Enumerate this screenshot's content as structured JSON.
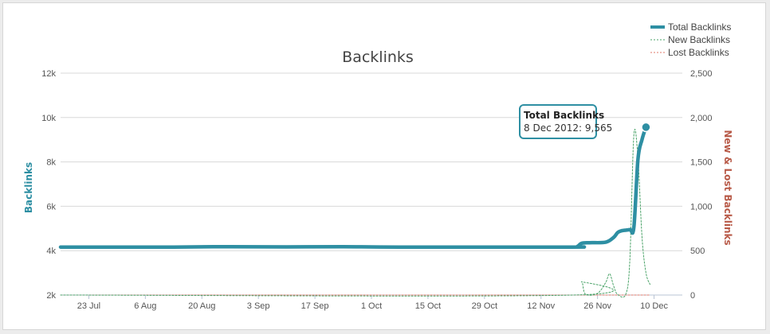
{
  "chart_data": {
    "type": "line",
    "title": "Backlinks",
    "ylabel": "Backlinks",
    "y2label": "New & Lost Backlinks",
    "ylim": [
      2000,
      12000
    ],
    "y2lim": [
      0,
      2500
    ],
    "y_ticks": [
      2000,
      4000,
      6000,
      8000,
      10000,
      12000
    ],
    "y_tick_labels": [
      "2k",
      "4k",
      "6k",
      "8k",
      "10k",
      "12k"
    ],
    "y2_ticks": [
      0,
      500,
      1000,
      1500,
      2000,
      2500
    ],
    "y2_tick_labels": [
      "0",
      "500",
      "1,000",
      "1,500",
      "2,000",
      "2,500"
    ],
    "x_start": "2012-07-16",
    "x_end": "2012-12-17",
    "x_ticks": [
      "2012-07-23",
      "2012-08-06",
      "2012-08-20",
      "2012-09-03",
      "2012-09-17",
      "2012-10-01",
      "2012-10-15",
      "2012-10-29",
      "2012-11-12",
      "2012-11-26",
      "2012-12-10"
    ],
    "x_tick_labels": [
      "23 Jul",
      "6 Aug",
      "20 Aug",
      "3 Sep",
      "17 Sep",
      "1 Oct",
      "15 Oct",
      "29 Oct",
      "12 Nov",
      "26 Nov",
      "10 Dec"
    ],
    "grid": true,
    "legend_position": "top-right",
    "series": [
      {
        "name": "Total Backlinks",
        "axis": "left",
        "color": "#2e8fa3",
        "style": "solid",
        "points": [
          [
            "2012-07-16",
            4160
          ],
          [
            "2012-08-13",
            4160
          ],
          [
            "2012-08-27",
            4180
          ],
          [
            "2012-09-10",
            4170
          ],
          [
            "2012-09-24",
            4180
          ],
          [
            "2012-10-08",
            4160
          ],
          [
            "2012-11-19",
            4160
          ],
          [
            "2012-11-21",
            4190
          ],
          [
            "2012-11-22",
            4330
          ],
          [
            "2012-11-24",
            4360
          ],
          [
            "2012-11-28",
            4380
          ],
          [
            "2012-11-30",
            4600
          ],
          [
            "2012-12-01",
            4820
          ],
          [
            "2012-12-02",
            4900
          ],
          [
            "2012-12-04",
            4950
          ],
          [
            "2012-12-05",
            5050
          ],
          [
            "2012-12-06",
            8100
          ],
          [
            "2012-12-07",
            9000
          ],
          [
            "2012-12-08",
            9565
          ]
        ]
      },
      {
        "name": "New Backlinks",
        "axis": "right",
        "color": "#4aa368",
        "style": "dotted",
        "points": [
          [
            "2012-07-16",
            0
          ],
          [
            "2012-11-20",
            0
          ],
          [
            "2012-11-22",
            150
          ],
          [
            "2012-11-23",
            10
          ],
          [
            "2012-11-26",
            20
          ],
          [
            "2012-11-28",
            140
          ],
          [
            "2012-11-29",
            240
          ],
          [
            "2012-11-30",
            100
          ],
          [
            "2012-12-01",
            5
          ],
          [
            "2012-12-03",
            10
          ],
          [
            "2012-12-04",
            400
          ],
          [
            "2012-12-05",
            1800
          ],
          [
            "2012-12-06",
            1550
          ],
          [
            "2012-12-07",
            660
          ],
          [
            "2012-12-08",
            250
          ],
          [
            "2012-12-09",
            120
          ]
        ]
      },
      {
        "name": "Lost Backlinks",
        "axis": "right",
        "color": "#e07a6a",
        "style": "dotted",
        "points": [
          [
            "2012-07-16",
            0
          ],
          [
            "2012-12-09",
            0
          ]
        ]
      }
    ],
    "tooltip": {
      "series": "Total Backlinks",
      "date_label": "8 Dec 2012",
      "value_label": "9,565"
    }
  }
}
